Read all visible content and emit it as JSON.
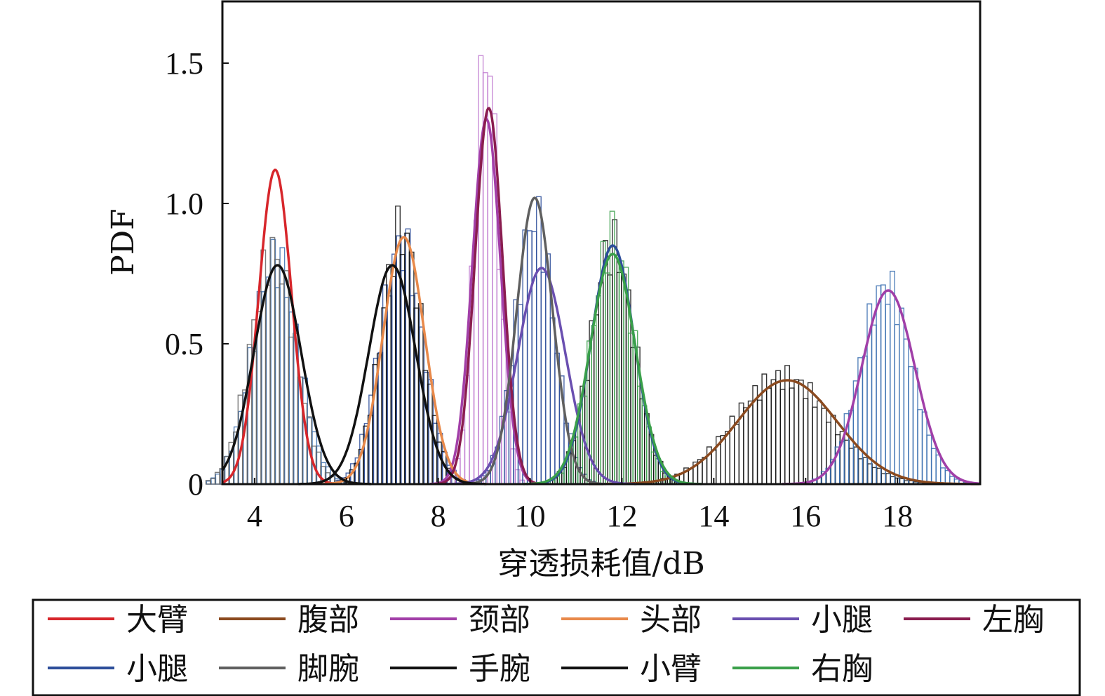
{
  "chart_data": {
    "type": "line",
    "xlabel": "穿透损耗值/dB",
    "ylabel": "PDF",
    "xlim": [
      3.3,
      19.8
    ],
    "ylim": [
      0,
      1.72
    ],
    "xticks": [
      {
        "value": 4,
        "label": "4"
      },
      {
        "value": 6,
        "label": "6"
      },
      {
        "value": 8,
        "label": "8"
      },
      {
        "value": 10,
        "label": "10"
      },
      {
        "value": 12,
        "label": "12"
      },
      {
        "value": 14,
        "label": "14"
      },
      {
        "value": 16,
        "label": "16"
      },
      {
        "value": 18,
        "label": "18"
      }
    ],
    "yticks": [
      {
        "value": 0,
        "label": "0"
      },
      {
        "value": 0.5,
        "label": "0.5"
      },
      {
        "value": 1.0,
        "label": "1.0"
      },
      {
        "value": 1.5,
        "label": "1.5"
      }
    ],
    "grid": false,
    "legend_position": "bottom",
    "series": [
      {
        "name": "大臂",
        "color": "#d7262b",
        "fit": {
          "mean": 4.45,
          "peak": 1.12
        }
      },
      {
        "name": "腹部",
        "color": "#8b4a1f",
        "fit": {
          "mean": 15.6,
          "peak": 0.37
        }
      },
      {
        "name": "颈部",
        "color": "#a23fa8",
        "fit": {
          "mean": 9.05,
          "peak": 1.3
        }
      },
      {
        "name": "头部",
        "color": "#e8894a",
        "fit": {
          "mean": 7.25,
          "peak": 0.88
        }
      },
      {
        "name": "小腿",
        "color": "#6a4fb0",
        "fit": {
          "mean": 10.25,
          "peak": 0.77
        }
      },
      {
        "name": "左胸",
        "color": "#8a1d4f",
        "fit": {
          "mean": 9.1,
          "peak": 1.34
        }
      },
      {
        "name": "小腿",
        "color": "#2d4e9a",
        "fit": {
          "mean": 11.8,
          "peak": 0.85
        }
      },
      {
        "name": "脚腕",
        "color": "#5f5f5f",
        "fit": {
          "mean": 10.1,
          "peak": 1.02
        }
      },
      {
        "name": "手腕",
        "color": "#111111",
        "fit": {
          "mean": 4.5,
          "peak": 0.78
        }
      },
      {
        "name": "小臂",
        "color": "#111111",
        "fit": {
          "mean": 7.0,
          "peak": 0.78
        }
      },
      {
        "name": "右胸",
        "color": "#3aa04a",
        "fit": {
          "mean": 11.8,
          "peak": 0.82
        }
      },
      {
        "name": "",
        "color": "#a13fa8",
        "fit": {
          "mean": 17.8,
          "peak": 0.69
        }
      }
    ],
    "histograms": [
      {
        "color": "#3a6fb0",
        "mean": 4.45,
        "peak": 0.8
      },
      {
        "color": "#666666",
        "mean": 4.4,
        "peak": 0.82
      },
      {
        "color": "#2d4e9a",
        "mean": 7.2,
        "peak": 0.85
      },
      {
        "color": "#111111",
        "mean": 7.2,
        "peak": 0.9
      },
      {
        "color": "#c07ad0",
        "mean": 9.05,
        "peak": 1.55
      },
      {
        "color": "#2d4e9a",
        "mean": 10.1,
        "peak": 0.95
      },
      {
        "color": "#111111",
        "mean": 11.8,
        "peak": 0.85
      },
      {
        "color": "#3aa04a",
        "mean": 11.8,
        "peak": 0.88
      },
      {
        "color": "#111111",
        "mean": 15.5,
        "peak": 0.38
      },
      {
        "color": "#3a6fb0",
        "mean": 17.75,
        "peak": 0.7
      }
    ]
  }
}
